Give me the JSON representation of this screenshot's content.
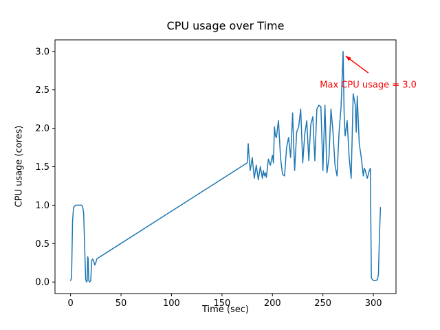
{
  "chart_data": {
    "type": "line",
    "title": "CPU usage over Time",
    "xlabel": "Time (sec)",
    "ylabel": "CPU usage (cores)",
    "xlim": [
      -15.4,
      322.4
    ],
    "ylim": [
      -0.15,
      3.15
    ],
    "xticks": [
      0,
      50,
      100,
      150,
      200,
      250,
      300
    ],
    "xtick_labels": [
      "0",
      "50",
      "100",
      "150",
      "200",
      "250",
      "300"
    ],
    "yticks": [
      0,
      0.5,
      1,
      1.5,
      2,
      2.5,
      3
    ],
    "ytick_labels": [
      "0.0",
      "0.5",
      "1.0",
      "1.5",
      "2.0",
      "2.5",
      "3.0"
    ],
    "grid": false,
    "legend": "none",
    "line_color": "#1f77b4",
    "series": [
      {
        "name": "CPU usage",
        "x": [
          0,
          1,
          2,
          3,
          5,
          7,
          9,
          11,
          12,
          13,
          14,
          15,
          16,
          16.5,
          17,
          17.5,
          18,
          19,
          20,
          21,
          22,
          23,
          24,
          25,
          26,
          27,
          175,
          176,
          177,
          178,
          180,
          182,
          184,
          186,
          188,
          190,
          191,
          192,
          193,
          194,
          196,
          198,
          200,
          201,
          202,
          203,
          204,
          205,
          206,
          208,
          210,
          212,
          214,
          216,
          218,
          220,
          221,
          222,
          224,
          226,
          228,
          230,
          232,
          234,
          236,
          238,
          240,
          242,
          244,
          246,
          248,
          250,
          252,
          254,
          256,
          258,
          260,
          262,
          264,
          266,
          268,
          270,
          271,
          272,
          274,
          276,
          278,
          280,
          282,
          283,
          284,
          286,
          288,
          290,
          291,
          292,
          294,
          296,
          297,
          298,
          300,
          302,
          304,
          305,
          306,
          307
        ],
        "y": [
          0.02,
          0.05,
          0.8,
          0.97,
          1.0,
          1.0,
          1.0,
          1.0,
          0.98,
          0.9,
          0.45,
          0.03,
          0.0,
          0.02,
          0.33,
          0.3,
          0.02,
          0.0,
          0.02,
          0.28,
          0.3,
          0.27,
          0.22,
          0.25,
          0.3,
          0.31,
          1.55,
          1.8,
          1.6,
          1.45,
          1.62,
          1.35,
          1.52,
          1.33,
          1.5,
          1.35,
          1.45,
          1.38,
          1.42,
          1.36,
          1.6,
          1.52,
          1.65,
          1.55,
          2.02,
          1.9,
          1.88,
          2.0,
          2.1,
          1.62,
          1.4,
          1.38,
          1.75,
          1.88,
          1.62,
          2.2,
          1.8,
          1.45,
          1.95,
          2.02,
          2.25,
          1.55,
          1.92,
          2.1,
          1.58,
          2.05,
          2.15,
          1.58,
          2.25,
          2.3,
          2.28,
          1.45,
          2.3,
          1.42,
          1.62,
          2.25,
          1.95,
          1.52,
          1.38,
          1.95,
          2.28,
          3.0,
          2.2,
          1.9,
          2.1,
          1.62,
          1.35,
          2.45,
          2.3,
          1.95,
          2.42,
          1.8,
          1.62,
          1.38,
          1.48,
          1.45,
          1.35,
          1.45,
          1.48,
          0.05,
          0.02,
          0.02,
          0.03,
          0.1,
          0.6,
          0.97
        ]
      }
    ],
    "annotation": {
      "text": "Max CPU usage = 3.0",
      "color": "#ff0000",
      "point": [
        270,
        3.0
      ],
      "text_pos": [
        247,
        2.53
      ],
      "arrow_tail": [
        295,
        2.72
      ],
      "arrow_head": [
        272.5,
        2.94
      ]
    },
    "max_value": 3.0
  }
}
